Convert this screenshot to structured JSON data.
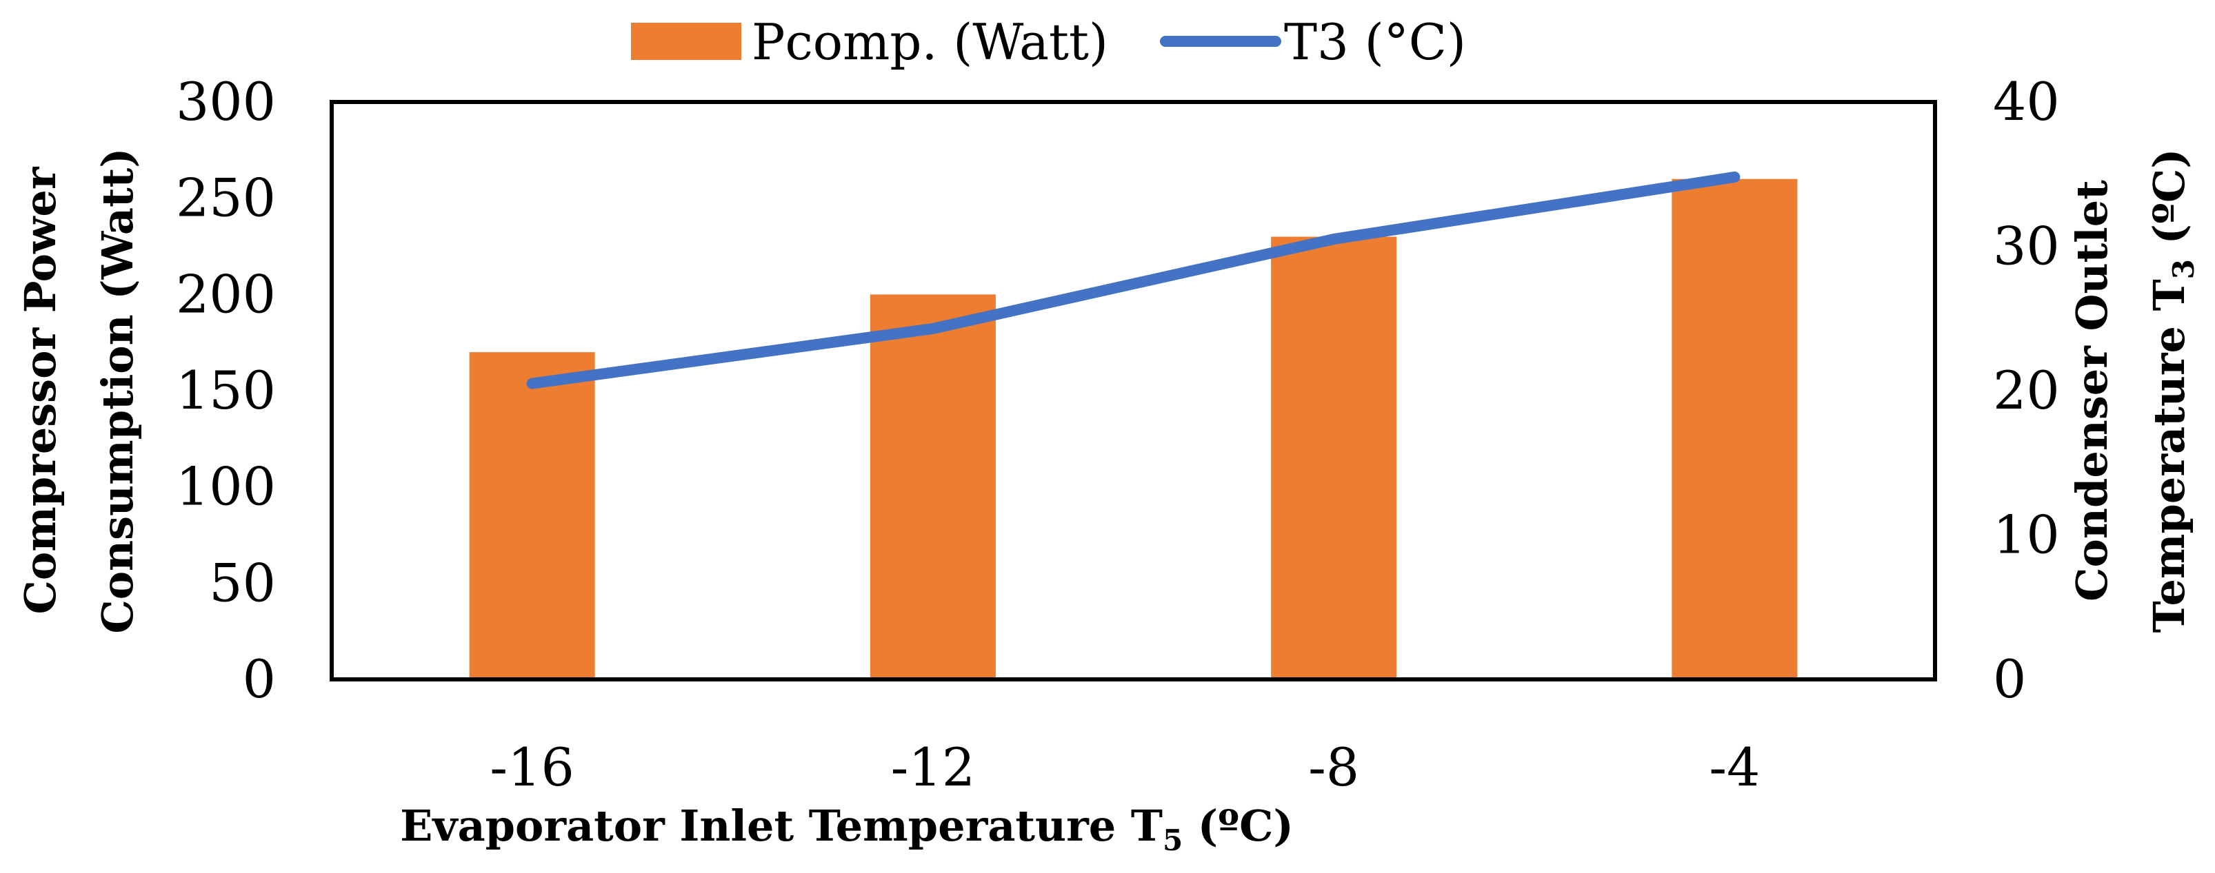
{
  "chart_data": {
    "type": "bar",
    "categories": [
      "-16",
      "-12",
      "-8",
      "-4"
    ],
    "series": [
      {
        "name": "Pcomp. (Watt)",
        "type": "bar",
        "axis": "left",
        "values": [
          170,
          200,
          230,
          260
        ]
      },
      {
        "name": "T3 (°C)",
        "type": "line",
        "axis": "right",
        "values": [
          20.5,
          24.3,
          30.5,
          34.8
        ]
      }
    ],
    "xlabel": {
      "main": "Evaporator Inlet Temperature T",
      "sub": "5",
      "unit": " (ºC)"
    },
    "ylabel_left": {
      "line1": "Compressor Power",
      "line2": "Consumption (Watt)"
    },
    "ylabel_right": {
      "line1": "Condenser Outlet",
      "line2_main": "Temperature T",
      "line2_sub": "3",
      "line2_unit": " (ºC)"
    },
    "ylim_left": [
      0,
      300
    ],
    "yticks_left": [
      "0",
      "50",
      "100",
      "150",
      "200",
      "250",
      "300"
    ],
    "ylim_right": [
      0,
      40
    ],
    "yticks_right": [
      "0",
      "10",
      "20",
      "30",
      "40"
    ],
    "grid": false,
    "legend_position": "top"
  },
  "colors": {
    "bar": "#ED7D31",
    "line": "#4472C4",
    "axis": "#000000"
  }
}
